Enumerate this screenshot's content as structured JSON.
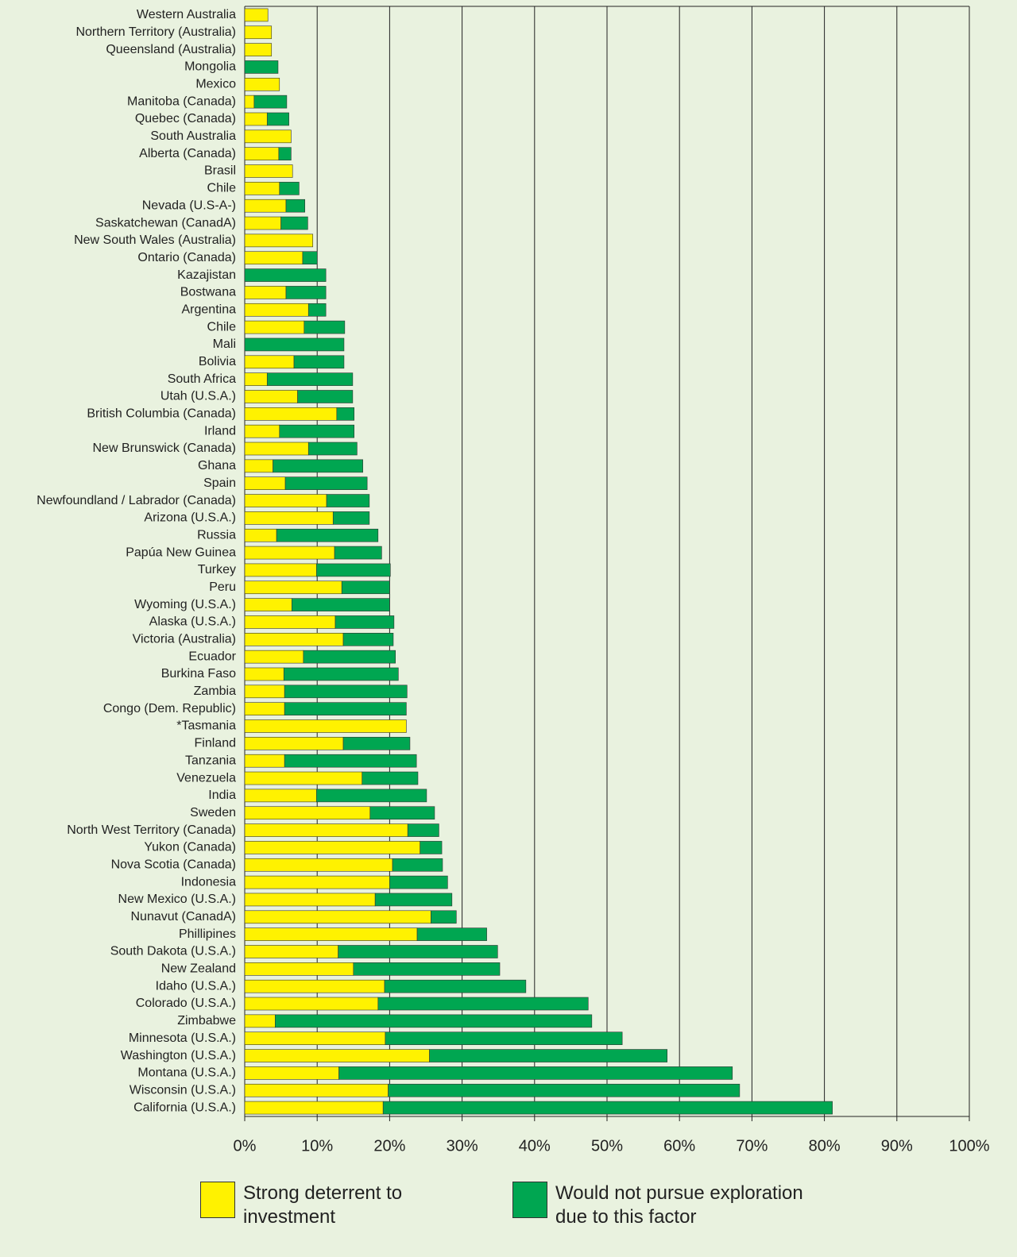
{
  "chart_data": {
    "type": "stacked-barh",
    "categories": [
      "Western Australia",
      "Northern Territory (Australia)",
      "Queensland (Australia)",
      "Mongolia",
      "Mexico",
      "Manitoba (Canada)",
      "Quebec (Canada)",
      "South Australia",
      "Alberta (Canada)",
      "Brasil",
      "Chile",
      "Nevada (U.S-A-)",
      "Saskatchewan (CanadA)",
      "New South Wales (Australia)",
      "Ontario (Canada)",
      "Kazajistan",
      "Bostwana",
      "Argentina",
      "Chile",
      "Mali",
      "Bolivia",
      "South Africa",
      "Utah (U.S.A.)",
      "British Columbia (Canada)",
      "Irland",
      "New Brunswick (Canada)",
      "Ghana",
      "Spain",
      "Newfoundland / Labrador (Canada)",
      "Arizona (U.S.A.)",
      "Russia",
      "Papúa New Guinea",
      "Turkey",
      "Peru",
      "Wyoming (U.S.A.)",
      "Alaska (U.S.A.)",
      "Victoria (Australia)",
      "Ecuador",
      "Burkina Faso",
      "Zambia",
      "Congo (Dem. Republic)",
      "*Tasmania",
      "Finland",
      "Tanzania",
      "Venezuela",
      "India",
      "Sweden",
      "North West Territory (Canada)",
      "Yukon (Canada)",
      "Nova Scotia (Canada)",
      "Indonesia",
      "New Mexico (U.S.A.)",
      "Nunavut (CanadA)",
      "Phillipines",
      "South Dakota (U.S.A.)",
      "New Zealand",
      "Idaho (U.S.A.)",
      "Colorado (U.S.A.)",
      "Zimbabwe",
      "Minnesota (U.S.A.)",
      "Washington (U.S.A.)",
      "Montana (U.S.A.)",
      "Wisconsin (U.S.A.)",
      "California (U.S.A.)"
    ],
    "series": [
      {
        "name": "Strong deterrent to investment",
        "color": "#fff200",
        "values": [
          3.2,
          3.7,
          3.7,
          0,
          4.8,
          1.3,
          3.1,
          6.4,
          4.7,
          6.6,
          4.8,
          5.7,
          5.0,
          9.4,
          8.0,
          0,
          5.7,
          8.8,
          8.2,
          0,
          6.8,
          3.1,
          7.3,
          12.7,
          4.8,
          8.8,
          3.9,
          5.6,
          11.3,
          12.2,
          4.4,
          12.4,
          9.9,
          13.4,
          6.5,
          12.5,
          13.6,
          8.1,
          5.4,
          5.5,
          5.5,
          22.3,
          13.6,
          5.5,
          16.2,
          9.9,
          17.3,
          22.5,
          24.2,
          20.4,
          20.0,
          18.0,
          25.7,
          23.8,
          12.9,
          15.0,
          19.3,
          18.4,
          4.2,
          19.4,
          25.5,
          13.0,
          19.8,
          19.1
        ]
      },
      {
        "name": "Would not pursue exploration due to this factor",
        "color": "#00a651",
        "values": [
          0,
          0,
          0,
          4.6,
          0,
          4.5,
          3.0,
          0,
          1.7,
          0,
          2.7,
          2.6,
          3.7,
          0,
          2.0,
          11.2,
          5.5,
          2.4,
          5.6,
          13.7,
          6.9,
          11.8,
          7.6,
          2.4,
          10.3,
          6.7,
          12.4,
          11.3,
          5.9,
          5.0,
          14.0,
          6.5,
          10.2,
          6.6,
          13.5,
          8.1,
          6.9,
          12.7,
          15.8,
          16.9,
          16.8,
          0,
          9.2,
          18.2,
          7.7,
          15.2,
          8.9,
          4.3,
          3.0,
          6.9,
          8.0,
          10.6,
          3.5,
          9.6,
          22.0,
          20.2,
          19.5,
          29.0,
          43.7,
          32.7,
          32.8,
          54.3,
          48.5,
          62.0
        ]
      }
    ],
    "xlim": [
      0,
      100
    ],
    "xticks": [
      {
        "value": 0,
        "label": "0%"
      },
      {
        "value": 10,
        "label": "10%"
      },
      {
        "value": 20,
        "label": "20%"
      },
      {
        "value": 30,
        "label": "30%"
      },
      {
        "value": 40,
        "label": "40%"
      },
      {
        "value": 50,
        "label": "50%"
      },
      {
        "value": 60,
        "label": "60%"
      },
      {
        "value": 70,
        "label": "70%"
      },
      {
        "value": 80,
        "label": "80%"
      },
      {
        "value": 90,
        "label": "90%"
      },
      {
        "value": 100,
        "label": "100%"
      }
    ],
    "grid": true
  }
}
